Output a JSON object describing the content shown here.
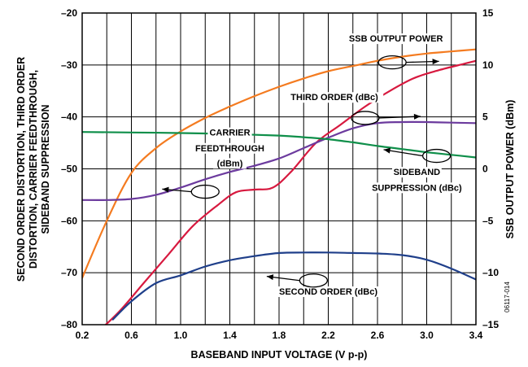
{
  "chart_data": {
    "type": "line",
    "xlabel": "BASEBAND INPUT VOLTAGE (V p-p)",
    "ylabel_left": [
      "SECOND ORDER DISTORTION, THIRD ORDER",
      "DISTORTION, CARRIER FEEDTHROUGH,",
      "SIDEBAND SUPPRESSION"
    ],
    "ylabel_right": "SSB OUTPUT POWER (dBm)",
    "xlim": [
      0.2,
      3.4
    ],
    "ylim_left": [
      -80,
      -20
    ],
    "ylim_right": [
      -15,
      15
    ],
    "x_ticks": [
      "0.2",
      "0.6",
      "1.0",
      "1.4",
      "1.8",
      "2.2",
      "2.6",
      "3.0",
      "3.4"
    ],
    "x_tick_values": [
      0.2,
      0.6,
      1.0,
      1.4,
      1.8,
      2.2,
      2.6,
      3.0,
      3.4
    ],
    "y_left_ticks": [
      "–20",
      "–30",
      "–40",
      "–50",
      "–60",
      "–70",
      "–80"
    ],
    "y_left_tick_values": [
      -20,
      -30,
      -40,
      -50,
      -60,
      -70,
      -80
    ],
    "y_right_ticks": [
      "15",
      "10",
      "5",
      "0",
      "–5",
      "–10",
      "–15"
    ],
    "y_right_tick_values": [
      15,
      10,
      5,
      0,
      -5,
      -10,
      -15
    ],
    "grid": true,
    "figure_code": "06117-014",
    "series": [
      {
        "name": "SSB OUTPUT POWER",
        "color": "#f47b20",
        "axis": "right",
        "x": [
          0.2,
          0.4,
          0.6,
          0.8,
          1.0,
          1.2,
          1.4,
          1.6,
          1.8,
          2.0,
          2.2,
          2.4,
          2.6,
          2.8,
          3.0,
          3.2,
          3.4
        ],
        "y": [
          -10.5,
          -5,
          -0.4,
          2,
          3.6,
          4.9,
          6.0,
          7.0,
          7.9,
          8.7,
          9.4,
          9.9,
          10.4,
          10.8,
          11.1,
          11.3,
          11.5
        ]
      },
      {
        "name": "THIRD ORDER (dBc)",
        "color": "#d7193f",
        "axis": "left",
        "x": [
          0.3,
          0.5,
          0.7,
          0.9,
          1.1,
          1.3,
          1.45,
          1.6,
          1.75,
          1.9,
          2.1,
          2.3,
          2.5,
          2.7,
          2.9,
          3.1,
          3.3,
          3.4
        ],
        "y": [
          -82,
          -77.5,
          -72,
          -66.5,
          -61,
          -57,
          -54.5,
          -54,
          -53.6,
          -50.5,
          -45,
          -41.5,
          -38,
          -35,
          -32.5,
          -31,
          -29.8,
          -29.2
        ]
      },
      {
        "name": "CARRIER FEEDTHROUGH (dBm)",
        "color": "#6c3b9e",
        "axis": "right",
        "x": [
          0.2,
          0.4,
          0.6,
          0.8,
          1.0,
          1.2,
          1.4,
          1.6,
          1.8,
          2.0,
          2.2,
          2.4,
          2.6,
          2.8,
          3.0,
          3.2,
          3.4
        ],
        "y": [
          -3,
          -3,
          -2.9,
          -2.5,
          -1.8,
          -1,
          -0.3,
          0.3,
          1.0,
          2.0,
          3.0,
          3.9,
          4.4,
          4.5,
          4.5,
          4.45,
          4.4
        ]
      },
      {
        "name": "SIDEBAND SUPPRESSION (dBc)",
        "color": "#0f8f4a",
        "axis": "left",
        "x": [
          0.2,
          0.6,
          1.0,
          1.4,
          1.8,
          2.0,
          2.2,
          2.4,
          2.6,
          2.8,
          3.0,
          3.2,
          3.4
        ],
        "y": [
          -42.9,
          -43,
          -43.1,
          -43.3,
          -43.6,
          -43.9,
          -44.3,
          -44.9,
          -45.6,
          -46.2,
          -46.8,
          -47.3,
          -47.8
        ]
      },
      {
        "name": "SECOND ORDER (dBc)",
        "color": "#1f3f8a",
        "axis": "left",
        "x": [
          0.45,
          0.6,
          0.8,
          1.0,
          1.2,
          1.4,
          1.6,
          1.8,
          2.0,
          2.2,
          2.4,
          2.6,
          2.8,
          3.0,
          3.2,
          3.4
        ],
        "y": [
          -79,
          -75.5,
          -72,
          -70.5,
          -68.8,
          -67.6,
          -66.8,
          -66.2,
          -66.1,
          -66.1,
          -66.2,
          -66.3,
          -66.6,
          -67.5,
          -69.2,
          -71.3
        ]
      }
    ],
    "annotations": [
      {
        "lines": [
          "SSB OUTPUT POWER"
        ],
        "text_x": 2.75,
        "text_y": -25.5,
        "ellipse": [
          2.72,
          -29.5
        ],
        "arrow_to": [
          3.1,
          -29.3
        ]
      },
      {
        "lines": [
          "THIRD ORDER (dBc)"
        ],
        "text_x": 2.25,
        "text_y": -36.8,
        "ellipse": [
          2.5,
          -40.2
        ],
        "arrow_to": [
          2.95,
          -39.9
        ]
      },
      {
        "lines": [
          "CARRIER",
          "FEEDTHROUGH",
          "(dBm)"
        ],
        "text_x": 1.4,
        "text_y": [
          -43.6,
          -46.6,
          -49.5
        ],
        "ellipse": [
          1.2,
          -54.4
        ],
        "arrow_to": [
          0.85,
          -53.9
        ]
      },
      {
        "lines": [
          "SIDEBAND",
          "SUPPRESSION (dBc)"
        ],
        "text_x": 2.92,
        "text_y": [
          -51.2,
          -54.2
        ],
        "ellipse": [
          3.08,
          -47.5
        ],
        "arrow_to": [
          2.65,
          -46.3
        ]
      },
      {
        "lines": [
          "SECOND ORDER (dBc)"
        ],
        "text_x": 2.2,
        "text_y": -74.2,
        "ellipse": [
          2.08,
          -71.5
        ],
        "arrow_to": [
          1.7,
          -70.7
        ]
      }
    ]
  }
}
